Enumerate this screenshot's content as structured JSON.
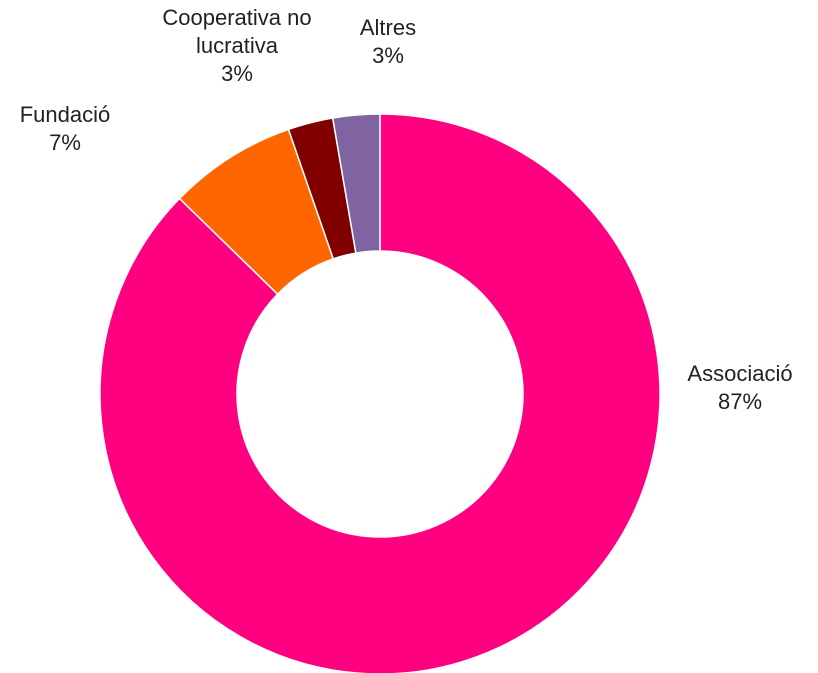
{
  "chart_data": {
    "type": "pie",
    "donut": true,
    "title": "",
    "start_angle_deg": 0,
    "direction": "clockwise",
    "slices": [
      {
        "label": [
          "Associació"
        ],
        "percent_label": "87%",
        "value": 87.3,
        "color": "#ff0080"
      },
      {
        "label": [
          "Fundació"
        ],
        "percent_label": "7%",
        "value": 7.4,
        "color": "#ff6600"
      },
      {
        "label": [
          "Cooperativa no",
          "lucrativa"
        ],
        "percent_label": "3%",
        "value": 2.6,
        "color": "#800000"
      },
      {
        "label": [
          "Altres"
        ],
        "percent_label": "3%",
        "value": 2.7,
        "color": "#8064a2"
      }
    ],
    "legend": "none"
  }
}
